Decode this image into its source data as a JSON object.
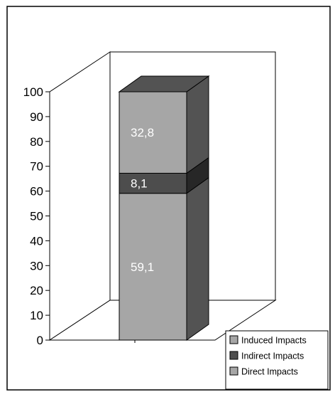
{
  "chart_data": {
    "type": "bar",
    "stacked": true,
    "three_d": true,
    "categories": [
      ""
    ],
    "series": [
      {
        "name": "Direct Impacts",
        "values": [
          59.1
        ],
        "label": "59,1",
        "color": "#a6a6a6"
      },
      {
        "name": "Indirect Impacts",
        "values": [
          8.1
        ],
        "label": "8,1",
        "color": "#4d4d4d"
      },
      {
        "name": "Induced Impacts",
        "values": [
          32.8
        ],
        "label": "32,8",
        "color": "#a6a6a6"
      }
    ],
    "yticks": [
      "0",
      "10",
      "20",
      "30",
      "40",
      "50",
      "60",
      "70",
      "80",
      "90",
      "100"
    ],
    "ylim": [
      0,
      100
    ],
    "title": "",
    "xlabel": "",
    "ylabel": "",
    "grid": false,
    "legend": {
      "placement": "bottom-right",
      "entries": [
        "Induced Impacts",
        "Indirect Impacts",
        "Direct Impacts"
      ]
    }
  }
}
